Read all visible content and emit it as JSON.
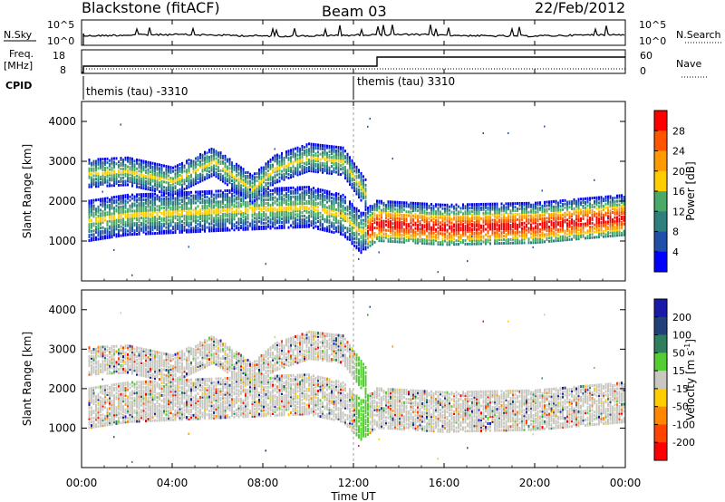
{
  "header": {
    "title": "Blackstone (fitACF)",
    "beam": "Beam 03",
    "date": "22/Feb/2012"
  },
  "top_panels": {
    "nsky_label": "N.Sky",
    "nsky_ticks": [
      "10^5",
      "10^0"
    ],
    "nsearch_label": "N.Search",
    "nsearch_ticks": [
      "10^5",
      "10^0"
    ],
    "freq_label": "Freq.",
    "freq_unit": "[MHz]",
    "freq_ticks": [
      "18",
      "8"
    ],
    "nave_label": "Nave",
    "nave_ticks": [
      "60",
      "0"
    ],
    "cpid_label": "CPID",
    "cpid_segments": [
      {
        "label": "themis (tau) -3310",
        "start_hour": 0
      },
      {
        "label": "themis (tau) 3310",
        "start_hour": 12
      }
    ]
  },
  "axes": {
    "xlabel": "Time UT",
    "x_ticks": [
      "00:00",
      "04:00",
      "08:00",
      "12:00",
      "16:00",
      "20:00",
      "00:00"
    ],
    "ylabel": "Slant Range [km]",
    "y_ticks": [
      "4000",
      "3000",
      "2000",
      "1000"
    ]
  },
  "power_scale": {
    "label": "Power [dB]",
    "ticks": [
      "28",
      "24",
      "20",
      "16",
      "12",
      "8",
      "4"
    ],
    "colors": [
      "#ff0000",
      "#ff5500",
      "#ff9900",
      "#ffcc00",
      "#4aa868",
      "#2f7f7f",
      "#1f4fa8",
      "#0000ff"
    ]
  },
  "velocity_scale": {
    "label": "Velocity [m s",
    "label_sup": "-1",
    "label_close": "]",
    "ticks": [
      "200",
      "100",
      "50",
      "15",
      "-15",
      "-50",
      "-100",
      "-200"
    ],
    "colors": [
      "#1a1aa8",
      "#22407a",
      "#2f7f5f",
      "#55cc33",
      "#c8c8c0",
      "#ffcc00",
      "#ff8800",
      "#ff4400",
      "#ff0000"
    ]
  },
  "chart_data": [
    {
      "type": "heatmap",
      "title": "Power",
      "xlabel": "Time UT",
      "ylabel": "Slant Range [km]",
      "xlim": [
        0,
        24
      ],
      "ylim": [
        0,
        4500
      ],
      "colorbar": {
        "label": "Power [dB]",
        "range": [
          0,
          32
        ]
      },
      "bands": [
        {
          "name": "near",
          "points": [
            [
              0.3,
              1500
            ],
            [
              2,
              1650
            ],
            [
              4,
              1700
            ],
            [
              6,
              1750
            ],
            [
              8,
              1800
            ],
            [
              10,
              1850
            ],
            [
              11.5,
              1650
            ],
            [
              12.3,
              1200
            ],
            [
              13,
              1500
            ],
            [
              16,
              1400
            ],
            [
              20,
              1450
            ],
            [
              24,
              1650
            ]
          ]
        },
        {
          "name": "far",
          "points": [
            [
              0.3,
              2700
            ],
            [
              2,
              2750
            ],
            [
              4,
              2500
            ],
            [
              5.8,
              3000
            ],
            [
              7.5,
              2300
            ],
            [
              8.5,
              2800
            ],
            [
              10,
              3100
            ],
            [
              11.5,
              3000
            ],
            [
              12.5,
              2200
            ]
          ]
        }
      ]
    },
    {
      "type": "heatmap",
      "title": "Velocity",
      "xlabel": "Time UT",
      "ylabel": "Slant Range [km]",
      "xlim": [
        0,
        24
      ],
      "ylim": [
        0,
        4500
      ],
      "colorbar": {
        "label": "Velocity [m s^-1]",
        "range": [
          -250,
          250
        ]
      }
    }
  ]
}
